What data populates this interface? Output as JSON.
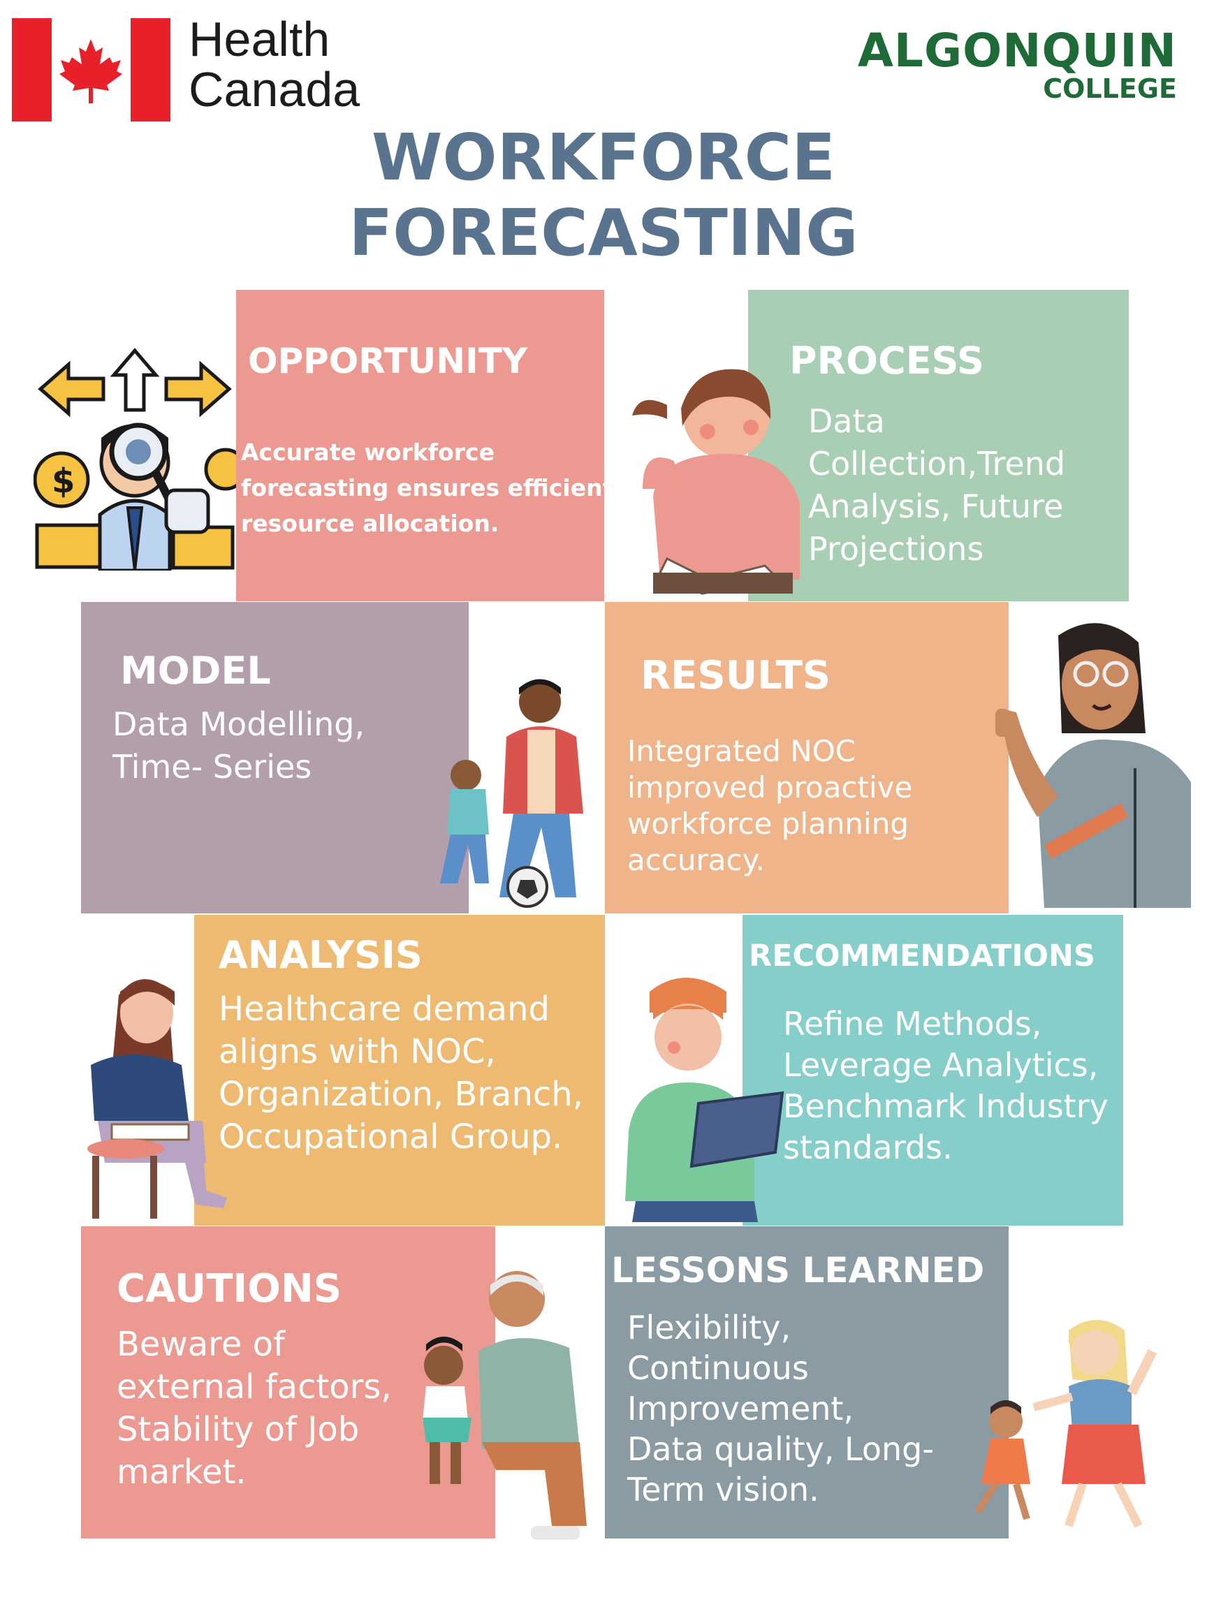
{
  "header": {
    "org_line1": "Health",
    "org_line2": "Canada",
    "college_line1": "ALGONQUIN",
    "college_line2": "COLLEGE",
    "title_line1": "WORKFORCE",
    "title_line2": "FORECASTING"
  },
  "colors": {
    "title": "#5a7490",
    "opportunity": "#ec9a91",
    "process": "#a8cfb4",
    "model": "#b39eab",
    "results": "#f0b48b",
    "analysis": "#eeba71",
    "recommendations": "#85ceca",
    "cautions": "#ec9a91",
    "lessons": "#8a9ba3",
    "flag_red": "#e8202a",
    "college_green": "#1f6b37"
  },
  "panels": {
    "opportunity": {
      "heading": "OPPORTUNITY",
      "body_lines": [
        "Accurate workforce",
        "forecasting ensures efficient",
        "resource allocation."
      ]
    },
    "process": {
      "heading": "PROCESS",
      "body_lines": [
        "Data",
        "Collection,Trend",
        "Analysis, Future",
        "Projections"
      ]
    },
    "model": {
      "heading": "MODEL",
      "body_lines": [
        "Data Modelling,",
        "Time- Series"
      ]
    },
    "results": {
      "heading": "RESULTS",
      "body_lines": [
        "Integrated NOC",
        "improved proactive",
        "workforce planning",
        "accuracy."
      ]
    },
    "analysis": {
      "heading": "ANALYSIS",
      "body_lines": [
        "Healthcare demand",
        "aligns with NOC,",
        "Organization, Branch,",
        "Occupational Group."
      ]
    },
    "recommendations": {
      "heading": "RECOMMENDATIONS",
      "body_lines": [
        "Refine Methods,",
        "Leverage Analytics,",
        "Benchmark Industry",
        "standards."
      ]
    },
    "cautions": {
      "heading": "CAUTIONS",
      "body_lines": [
        "Beware of",
        "external factors,",
        "Stability of Job",
        "market."
      ]
    },
    "lessons": {
      "heading": "LESSONS LEARNED",
      "body_lines": [
        "Flexibility,",
        "Continuous",
        "Improvement,",
        "Data quality, Long-",
        "Term vision."
      ]
    }
  },
  "illustrations": {
    "opportunity": "business-analyst-magnifier-illustration",
    "process": "woman-reading-book-illustration",
    "model": "father-son-soccer-illustration",
    "results": "woman-with-glasses-pointing-illustration",
    "analysis": "woman-sitting-with-book-illustration",
    "recommendations": "boy-holding-tablet-illustration",
    "cautions": "grandfather-and-child-illustration",
    "lessons": "mother-daughter-dancing-illustration"
  }
}
